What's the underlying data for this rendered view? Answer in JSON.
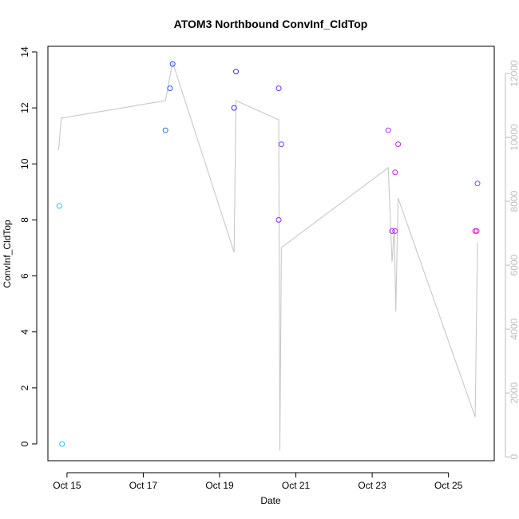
{
  "chart_data": {
    "type": "scatter",
    "title": "ATOM3 Northbound ConvInf_CldTop",
    "xlabel": "Date",
    "ylabel": "ConvInf_CldTop",
    "x_ticks": [
      "Oct 15",
      "Oct 17",
      "Oct 19",
      "Oct 21",
      "Oct 23",
      "Oct 25"
    ],
    "x_tick_values": [
      15,
      17,
      19,
      21,
      23,
      25
    ],
    "xlim": [
      14.5,
      26.2
    ],
    "ylim": [
      -0.6,
      14.2
    ],
    "y_ticks": [
      0,
      2,
      4,
      6,
      8,
      10,
      12,
      14
    ],
    "y2_ticks": [
      0,
      2000,
      4000,
      6000,
      8000,
      10000,
      12000
    ],
    "y2lim": [
      -120,
      12850
    ],
    "grid": false,
    "points": [
      {
        "x": 14.8,
        "y": 8.5,
        "color": "#22c3e6"
      },
      {
        "x": 14.87,
        "y": 0.0,
        "color": "#22c3e6"
      },
      {
        "x": 17.58,
        "y": 11.2,
        "color": "#1f6fd6"
      },
      {
        "x": 17.7,
        "y": 12.7,
        "color": "#2a5fe0"
      },
      {
        "x": 17.77,
        "y": 13.57,
        "color": "#2a52e8"
      },
      {
        "x": 19.38,
        "y": 12.0,
        "color": "#3b2ef0"
      },
      {
        "x": 19.43,
        "y": 13.3,
        "color": "#4030f0"
      },
      {
        "x": 20.55,
        "y": 12.7,
        "color": "#7a2ef0"
      },
      {
        "x": 20.55,
        "y": 8.0,
        "color": "#8a2ee8"
      },
      {
        "x": 20.62,
        "y": 10.7,
        "color": "#8a2ee8"
      },
      {
        "x": 23.42,
        "y": 11.2,
        "color": "#b21ff0"
      },
      {
        "x": 23.52,
        "y": 7.6,
        "color": "#b81fee"
      },
      {
        "x": 23.6,
        "y": 7.6,
        "color": "#bd1fec"
      },
      {
        "x": 23.6,
        "y": 9.7,
        "color": "#c01eea"
      },
      {
        "x": 23.68,
        "y": 10.7,
        "color": "#c41ee8"
      },
      {
        "x": 25.7,
        "y": 7.6,
        "color": "#e516d6"
      },
      {
        "x": 25.74,
        "y": 7.6,
        "color": "#e516d6"
      },
      {
        "x": 25.76,
        "y": 9.3,
        "color": "#e914d2"
      }
    ],
    "secondary_line": {
      "color": "#c8c8c8",
      "points": [
        [
          14.78,
          9600
        ],
        [
          14.85,
          10600
        ],
        [
          17.58,
          11150
        ],
        [
          17.77,
          12350
        ],
        [
          19.38,
          6400
        ],
        [
          19.43,
          11150
        ],
        [
          20.55,
          10550
        ],
        [
          20.58,
          200
        ],
        [
          20.62,
          6550
        ],
        [
          23.42,
          9050
        ],
        [
          23.52,
          6100
        ],
        [
          23.58,
          7150
        ],
        [
          23.62,
          4550
        ],
        [
          23.68,
          8100
        ],
        [
          25.7,
          1250
        ],
        [
          25.76,
          6700
        ]
      ]
    }
  }
}
